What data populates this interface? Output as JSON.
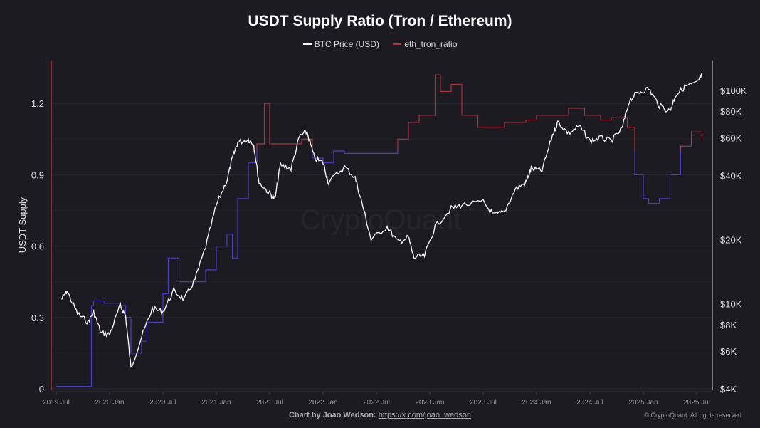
{
  "chart_data": {
    "type": "line",
    "title": "USDT Supply Ratio (Tron / Ethereum)",
    "legend": [
      "BTC Price (USD)",
      "eth_tron_ratio"
    ],
    "legend_position": "top-center",
    "ylabel": "USDT Supply",
    "ylim": [
      0,
      1.32
    ],
    "y_ticks": [
      "0",
      "0.3",
      "0.6",
      "0.9",
      "1.2"
    ],
    "y2_ticks": [
      "$4K",
      "$6K",
      "$8K",
      "$10K",
      "$20K",
      "$40K",
      "$60K",
      "$80K",
      "$100K"
    ],
    "y2_tick_values": [
      4000,
      6000,
      8000,
      10000,
      20000,
      40000,
      60000,
      80000,
      100000
    ],
    "y2_scale": "log",
    "x_ticks": [
      "2019 Jul",
      "2020 Jan",
      "2020 Jul",
      "2021 Jan",
      "2021 Jul",
      "2022 Jan",
      "2022 Jul",
      "2023 Jan",
      "2023 Jul",
      "2024 Jan",
      "2024 Jul",
      "2025 Jan",
      "2025 Jul"
    ],
    "ratio_threshold": 1.0,
    "colors": {
      "btc": "#ffffff",
      "ratio_above": "#b1323c",
      "ratio_below": "#4a3dcc",
      "axis_left": "#b1323c"
    },
    "series": [
      {
        "name": "BTC Price (USD)",
        "x": [
          2019.55,
          2019.6,
          2019.7,
          2019.8,
          2019.85,
          2019.92,
          2020.0,
          2020.1,
          2020.15,
          2020.2,
          2020.3,
          2020.4,
          2020.5,
          2020.6,
          2020.7,
          2020.8,
          2020.9,
          2021.0,
          2021.1,
          2021.15,
          2021.2,
          2021.3,
          2021.35,
          2021.4,
          2021.5,
          2021.55,
          2021.6,
          2021.7,
          2021.78,
          2021.85,
          2021.92,
          2022.0,
          2022.05,
          2022.2,
          2022.3,
          2022.37,
          2022.45,
          2022.6,
          2022.7,
          2022.8,
          2022.85,
          2022.95,
          2023.05,
          2023.2,
          2023.3,
          2023.5,
          2023.6,
          2023.7,
          2023.8,
          2023.9,
          2023.95,
          2024.05,
          2024.15,
          2024.2,
          2024.3,
          2024.4,
          2024.5,
          2024.6,
          2024.7,
          2024.8,
          2024.87,
          2024.95,
          2025.05,
          2025.15,
          2025.25,
          2025.3,
          2025.4,
          2025.5,
          2025.55
        ],
        "values": [
          10500,
          11500,
          9000,
          8200,
          9200,
          7300,
          7200,
          9800,
          8800,
          5000,
          7000,
          9500,
          9200,
          11500,
          10500,
          13000,
          18500,
          29000,
          38000,
          48000,
          57000,
          59000,
          56000,
          37000,
          33000,
          31000,
          45000,
          43000,
          61000,
          64000,
          48000,
          46000,
          37000,
          44000,
          39000,
          29000,
          20000,
          23000,
          19500,
          20500,
          16500,
          16800,
          23000,
          28000,
          29000,
          30000,
          26000,
          27000,
          34500,
          37000,
          43000,
          42000,
          62000,
          71000,
          63000,
          68000,
          58000,
          60000,
          58000,
          66000,
          90000,
          98000,
          102000,
          85000,
          80000,
          95000,
          105000,
          108000,
          118000
        ]
      },
      {
        "name": "eth_tron_ratio",
        "x": [
          2019.5,
          2019.78,
          2019.83,
          2019.85,
          2019.95,
          2020.1,
          2020.15,
          2020.2,
          2020.3,
          2020.35,
          2020.5,
          2020.55,
          2020.65,
          2020.75,
          2020.9,
          2021.0,
          2021.1,
          2021.15,
          2021.2,
          2021.3,
          2021.38,
          2021.45,
          2021.5,
          2021.7,
          2021.8,
          2021.9,
          2022.0,
          2022.1,
          2022.2,
          2022.3,
          2022.5,
          2022.7,
          2022.8,
          2022.9,
          2023.05,
          2023.1,
          2023.2,
          2023.3,
          2023.45,
          2023.6,
          2023.7,
          2023.9,
          2024.0,
          2024.15,
          2024.3,
          2024.45,
          2024.6,
          2024.7,
          2024.85,
          2024.92,
          2025.0,
          2025.05,
          2025.15,
          2025.25,
          2025.35,
          2025.45,
          2025.55
        ],
        "values": [
          0.01,
          0.01,
          0.35,
          0.37,
          0.36,
          0.35,
          0.3,
          0.15,
          0.2,
          0.28,
          0.4,
          0.55,
          0.45,
          0.45,
          0.5,
          0.6,
          0.65,
          0.55,
          0.8,
          0.95,
          1.03,
          1.2,
          1.03,
          1.03,
          1.05,
          0.97,
          0.95,
          1.0,
          0.99,
          0.99,
          0.99,
          1.05,
          1.12,
          1.15,
          1.32,
          1.25,
          1.28,
          1.15,
          1.1,
          1.1,
          1.12,
          1.13,
          1.15,
          1.15,
          1.18,
          1.15,
          1.13,
          1.14,
          1.1,
          0.9,
          0.8,
          0.78,
          0.8,
          0.9,
          1.02,
          1.08,
          1.05
        ]
      }
    ]
  },
  "footer": {
    "credit_label": "Chart by Joao Wedson:",
    "credit_link": "https://x.com/joao_wedson",
    "copyright": "© CryptoQuant. All rights reserved"
  },
  "watermark": "CryptoQuant"
}
